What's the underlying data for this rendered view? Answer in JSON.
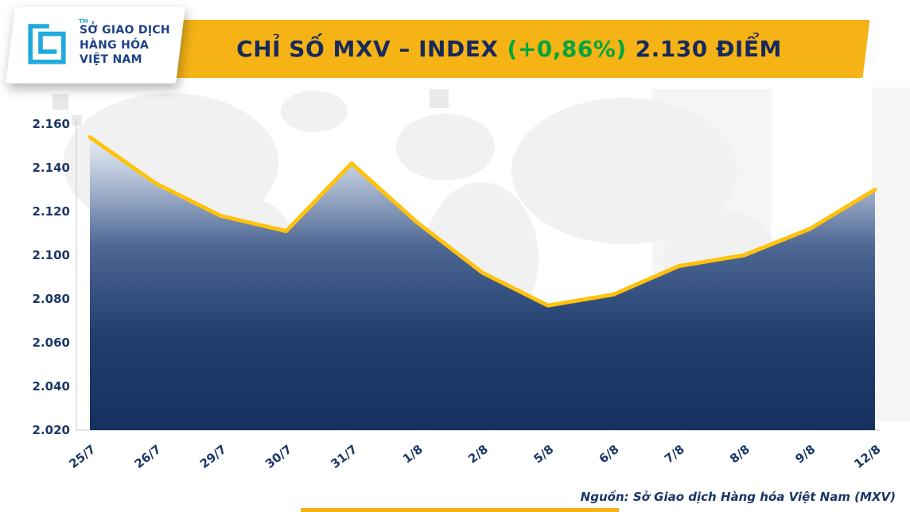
{
  "header": {
    "title_main": "CHỈ SỐ MXV – INDEX",
    "title_change": "(+0,86%)",
    "title_value": "2.130 ĐIỂM",
    "banner_color": "#F5B316",
    "title_color": "#18295B",
    "change_color": "#00A63C"
  },
  "logo": {
    "line1": "SỞ GIAO DỊCH",
    "line2": "HÀNG HÓA",
    "line3": "VIỆT NAM",
    "trademark": "TM",
    "mark_color": "#1FA9DC",
    "text_color": "#1D4289"
  },
  "chart_data": {
    "type": "area",
    "title": "CHỈ SỐ MXV – INDEX (+0,86%) 2.130 ĐIỂM",
    "categories": [
      "25/7",
      "26/7",
      "29/7",
      "30/7",
      "31/7",
      "1/8",
      "2/8",
      "5/8",
      "6/8",
      "7/8",
      "8/8",
      "9/8",
      "12/8"
    ],
    "values": [
      2.154,
      2.133,
      2.118,
      2.111,
      2.142,
      2.115,
      2.092,
      2.077,
      2.082,
      2.095,
      2.1,
      2.112,
      2.13
    ],
    "ylim": [
      2.02,
      2.16
    ],
    "yticks": [
      "2.160",
      "2.140",
      "2.120",
      "2.100",
      "2.080",
      "2.060",
      "2.040",
      "2.020"
    ],
    "xlabel": "",
    "ylabel": "",
    "grid": false,
    "legend": false,
    "line_color": "#FFC20D",
    "fill_gradient": [
      {
        "offset": 0,
        "color": "#f2f5f9"
      },
      {
        "offset": 0.14,
        "color": "#bac7db"
      },
      {
        "offset": 0.38,
        "color": "#4e6794"
      },
      {
        "offset": 0.68,
        "color": "#203e6e"
      },
      {
        "offset": 1,
        "color": "#16315f"
      }
    ]
  },
  "footer": {
    "source": "Nguồn: Sở Giao dịch Hàng hóa Việt Nam (MXV)"
  }
}
